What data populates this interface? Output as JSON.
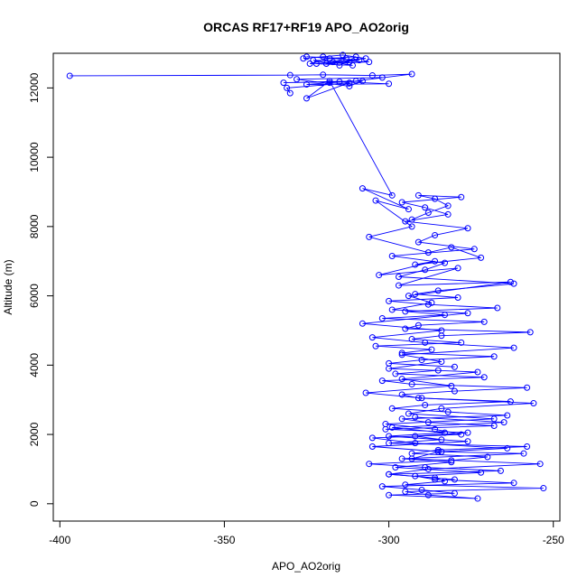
{
  "chart_data": {
    "type": "scatter",
    "title": "ORCAS RF17+RF19 APO_AO2orig",
    "xlabel": "APO_AO2orig",
    "ylabel": "Altitude (m)",
    "xlim": [
      -402,
      -248
    ],
    "ylim": [
      -500,
      13000
    ],
    "x_ticks": [
      -400,
      -350,
      -300,
      -250
    ],
    "y_ticks": [
      0,
      2000,
      4000,
      6000,
      8000,
      10000,
      12000
    ],
    "x_tick_labels": [
      "-400",
      "-350",
      "-300",
      "-250"
    ],
    "y_tick_labels": [
      "0",
      "2000",
      "4000",
      "6000",
      "8000",
      "10000",
      "12000"
    ],
    "grid": false,
    "legend": "none",
    "marker": "open-circle",
    "connected": true,
    "color": "#0000ff",
    "series": [
      {
        "x": [
          -330,
          -331,
          -312,
          -325,
          -318,
          -299,
          -308,
          -294,
          -304,
          -293,
          -306,
          -288,
          -281,
          -272,
          -292,
          -286,
          -303,
          -279,
          -297,
          -263,
          -294,
          -287,
          -299,
          -276,
          -308,
          -284,
          -305,
          -289,
          -262,
          -296,
          -284,
          -300,
          -273,
          -296,
          -281,
          -307,
          -290,
          -256,
          -284,
          -294,
          -268,
          -301,
          -286,
          -278,
          -305,
          -292,
          -264,
          -285,
          -293,
          -254,
          -288,
          -300,
          -280
        ],
        "y": [
          11850,
          12000,
          12150,
          11700,
          12200,
          8900,
          9100,
          8500,
          8750,
          8000,
          7700,
          7250,
          7400,
          7100,
          6900,
          7000,
          6600,
          6800,
          6300,
          6400,
          6000,
          5800,
          5600,
          5500,
          5200,
          5000,
          4800,
          4650,
          4500,
          4300,
          4100,
          3900,
          3800,
          3600,
          3400,
          3200,
          3050,
          2900,
          2750,
          2600,
          2450,
          2300,
          2150,
          2000,
          1900,
          1750,
          1600,
          1500,
          1300,
          1150,
          1000,
          850,
          700
        ]
      },
      {
        "x": [
          -292,
          -265,
          -299,
          -283,
          -300,
          -276,
          -305,
          -284,
          -259,
          -296,
          -281,
          -298,
          -272,
          -292,
          -286,
          -262,
          -302,
          -290,
          -280,
          -300,
          -273,
          -288,
          -295,
          -253,
          -295,
          -283,
          -286,
          -300,
          -266,
          -289,
          -306,
          -281,
          -270,
          -293,
          -285,
          -258,
          -300,
          -284,
          -292,
          -276,
          -301,
          -268,
          -288,
          -296,
          -264,
          -282,
          -299,
          -289,
          -263,
          -291,
          -296,
          -280,
          -258,
          -293,
          -302,
          -271,
          -298,
          -285
        ],
        "y": [
          2500,
          2350,
          2200,
          2050,
          1950,
          1800,
          1650,
          1500,
          1450,
          1300,
          1200,
          1050,
          900,
          800,
          700,
          600,
          500,
          400,
          300,
          250,
          150,
          250,
          350,
          450,
          550,
          650,
          750,
          850,
          950,
          1050,
          1150,
          1250,
          1350,
          1450,
          1550,
          1650,
          1750,
          1850,
          1950,
          2050,
          2150,
          2250,
          2350,
          2450,
          2550,
          2650,
          2750,
          2850,
          2950,
          3050,
          3150,
          3250,
          3350,
          3450,
          3550,
          3650,
          3750,
          3850
        ]
      },
      {
        "x": [
          -280,
          -300,
          -290,
          -268,
          -296,
          -287,
          -304,
          -278,
          -293,
          -284,
          -257,
          -295,
          -291,
          -271,
          -302,
          -283,
          -295,
          -267,
          -288,
          -300,
          -279,
          -292,
          -285,
          -262,
          -297,
          -289,
          -283,
          -299,
          -274,
          -291,
          -286,
          -276,
          -295,
          -282,
          -289,
          -296,
          -278,
          -291,
          -286,
          -282,
          -288,
          -293
        ],
        "y": [
          3950,
          4050,
          4150,
          4250,
          4350,
          4450,
          4550,
          4650,
          4750,
          4850,
          4950,
          5050,
          5150,
          5250,
          5350,
          5450,
          5550,
          5650,
          5750,
          5850,
          5950,
          6050,
          6150,
          6350,
          6550,
          6750,
          6950,
          7150,
          7350,
          7550,
          7750,
          7950,
          8150,
          8350,
          8550,
          8700,
          8850,
          8900,
          8800,
          8600,
          8400,
          8200
        ]
      },
      {
        "x": [
          -326,
          -320,
          -314,
          -307,
          -322,
          -311,
          -317,
          -309,
          -325,
          -313,
          -319,
          -306,
          -323,
          -315,
          -310,
          -318,
          -324,
          -312
        ],
        "y": [
          12850,
          12900,
          12950,
          12850,
          12700,
          12650,
          12750,
          12800,
          12900,
          12850,
          12700,
          12750,
          12800,
          12650,
          12900,
          12850,
          12700,
          12750
        ]
      },
      {
        "x": [
          -397,
          -330,
          -320,
          -305,
          -293,
          -310,
          -332,
          -315,
          -300,
          -325,
          -318,
          -308,
          -312,
          -328,
          -302
        ],
        "y": [
          12350,
          12370,
          12380,
          12360,
          12400,
          12200,
          12150,
          12180,
          12120,
          12100,
          12150,
          12200,
          12050,
          12250,
          12300
        ]
      }
    ]
  }
}
